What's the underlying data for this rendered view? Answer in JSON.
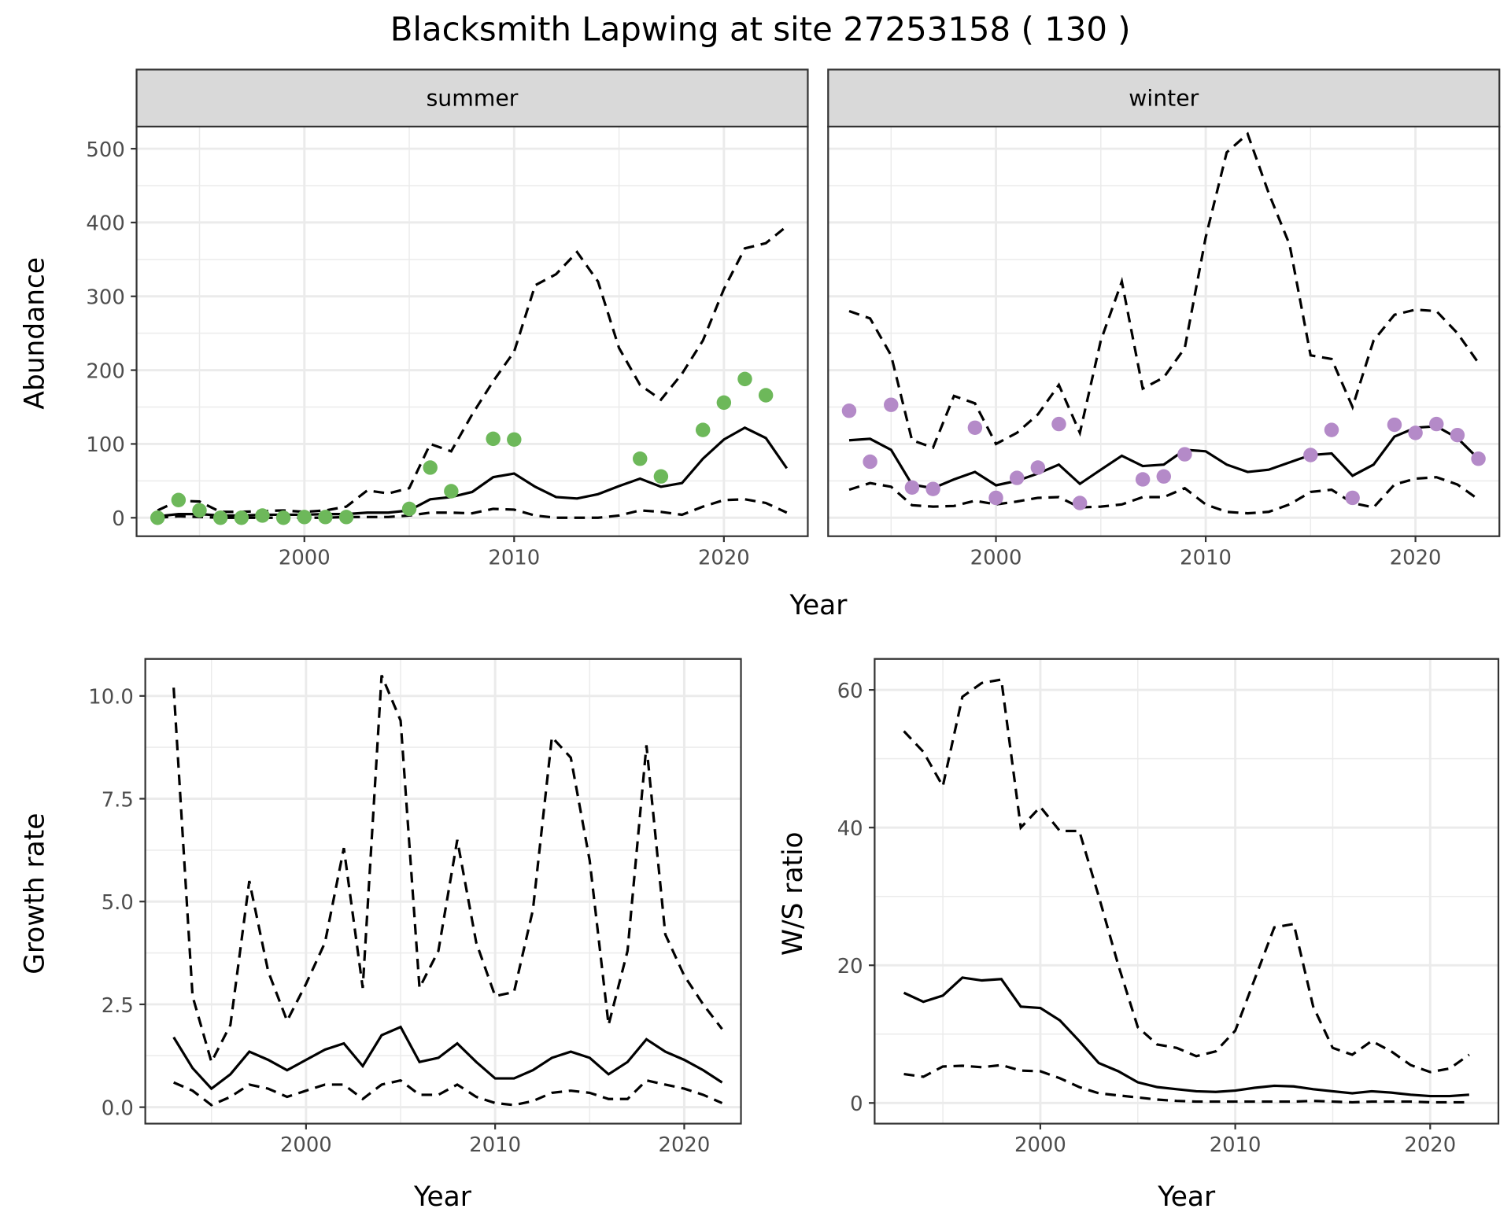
{
  "title": "Blacksmith Lapwing at site 27253158 ( 130 )",
  "colors": {
    "summer": "#6DB85A",
    "winter": "#B48AC8",
    "line": "#000000"
  },
  "chart_data": [
    {
      "type": "line",
      "panel": "summer",
      "strip_label": "summer",
      "xlabel": "Year",
      "ylabel": "Abundance",
      "xlim": [
        1992,
        2024
      ],
      "ylim": [
        -25,
        530
      ],
      "xticks": [
        2000,
        2010,
        2020
      ],
      "xtick_labels": [
        "2000",
        "2010",
        "2020"
      ],
      "yticks": [
        0,
        100,
        200,
        300,
        400,
        500
      ],
      "ytick_labels": [
        "0",
        "100",
        "200",
        "300",
        "400",
        "500"
      ],
      "x": [
        1993,
        1994,
        1995,
        1996,
        1997,
        1998,
        1999,
        2000,
        2001,
        2002,
        2003,
        2004,
        2005,
        2006,
        2007,
        2008,
        2009,
        2010,
        2011,
        2012,
        2013,
        2014,
        2015,
        2016,
        2017,
        2018,
        2019,
        2020,
        2021,
        2022,
        2023
      ],
      "series": [
        {
          "name": "mean",
          "style": "solid",
          "values": [
            2,
            5,
            5,
            3,
            3,
            4,
            4,
            4,
            5,
            5,
            7,
            7,
            10,
            25,
            28,
            35,
            55,
            60,
            42,
            28,
            26,
            32,
            43,
            53,
            42,
            47,
            80,
            106,
            122,
            108,
            67
          ]
        },
        {
          "name": "upper",
          "style": "dashed",
          "values": [
            10,
            23,
            22,
            8,
            8,
            9,
            10,
            8,
            10,
            15,
            37,
            33,
            40,
            100,
            90,
            140,
            185,
            225,
            315,
            330,
            360,
            320,
            230,
            180,
            160,
            195,
            240,
            310,
            365,
            372,
            395
          ]
        },
        {
          "name": "lower",
          "style": "dashed",
          "values": [
            0,
            2,
            1,
            0,
            0,
            0,
            0,
            0,
            0,
            1,
            1,
            1,
            3,
            7,
            7,
            6,
            12,
            11,
            3,
            0,
            0,
            0,
            3,
            10,
            8,
            4,
            15,
            24,
            25,
            20,
            7
          ]
        }
      ],
      "points": {
        "x": [
          1993,
          1994,
          1995,
          1996,
          1997,
          1998,
          1999,
          2000,
          2001,
          2002,
          2005,
          2006,
          2007,
          2009,
          2010,
          2016,
          2017,
          2019,
          2020,
          2021,
          2022
        ],
        "y": [
          0,
          24,
          10,
          0,
          0,
          3,
          0,
          1,
          1,
          1,
          12,
          68,
          36,
          107,
          106,
          80,
          56,
          119,
          156,
          188,
          166
        ]
      }
    },
    {
      "type": "line",
      "panel": "winter",
      "strip_label": "winter",
      "xlabel": "Year",
      "ylabel": "Abundance",
      "xlim": [
        1992,
        2024
      ],
      "ylim": [
        -25,
        530
      ],
      "xticks": [
        2000,
        2010,
        2020
      ],
      "xtick_labels": [
        "2000",
        "2010",
        "2020"
      ],
      "x": [
        1993,
        1994,
        1995,
        1996,
        1997,
        1998,
        1999,
        2000,
        2001,
        2002,
        2003,
        2004,
        2005,
        2006,
        2007,
        2008,
        2009,
        2010,
        2011,
        2012,
        2013,
        2014,
        2015,
        2016,
        2017,
        2018,
        2019,
        2020,
        2021,
        2022,
        2023
      ],
      "series": [
        {
          "name": "mean",
          "style": "solid",
          "values": [
            105,
            107,
            92,
            45,
            40,
            52,
            62,
            44,
            50,
            60,
            72,
            46,
            65,
            84,
            70,
            72,
            92,
            90,
            72,
            62,
            65,
            75,
            85,
            87,
            57,
            72,
            110,
            122,
            124,
            108,
            80
          ]
        },
        {
          "name": "upper",
          "style": "dashed",
          "values": [
            280,
            270,
            220,
            105,
            95,
            165,
            155,
            100,
            115,
            140,
            180,
            115,
            240,
            320,
            175,
            190,
            230,
            380,
            495,
            520,
            440,
            370,
            220,
            215,
            150,
            240,
            275,
            282,
            280,
            250,
            210
          ]
        },
        {
          "name": "lower",
          "style": "dashed",
          "values": [
            38,
            47,
            42,
            17,
            15,
            16,
            23,
            18,
            22,
            27,
            28,
            14,
            15,
            18,
            28,
            28,
            40,
            18,
            8,
            6,
            8,
            18,
            35,
            38,
            20,
            14,
            45,
            53,
            55,
            45,
            25
          ]
        }
      ],
      "points": {
        "x": [
          1993,
          1994,
          1995,
          1996,
          1997,
          1999,
          2000,
          2001,
          2002,
          2003,
          2004,
          2007,
          2008,
          2009,
          2015,
          2016,
          2017,
          2019,
          2020,
          2021,
          2022,
          2023
        ],
        "y": [
          145,
          76,
          153,
          41,
          39,
          122,
          27,
          54,
          68,
          127,
          20,
          52,
          56,
          86,
          85,
          119,
          27,
          126,
          115,
          127,
          112,
          80
        ]
      }
    },
    {
      "type": "line",
      "panel": "growth",
      "xlabel": "Year",
      "ylabel": "Growth rate",
      "xlim": [
        1991.5,
        2023
      ],
      "ylim": [
        -0.4,
        10.9
      ],
      "xticks": [
        2000,
        2010,
        2020
      ],
      "xtick_labels": [
        "2000",
        "2010",
        "2020"
      ],
      "yticks": [
        0,
        2.5,
        5,
        7.5,
        10
      ],
      "ytick_labels": [
        "0.0",
        "2.5",
        "5.0",
        "7.5",
        "10.0"
      ],
      "x": [
        1993,
        1994,
        1995,
        1996,
        1997,
        1998,
        1999,
        2000,
        2001,
        2002,
        2003,
        2004,
        2005,
        2006,
        2007,
        2008,
        2009,
        2010,
        2011,
        2012,
        2013,
        2014,
        2015,
        2016,
        2017,
        2018,
        2019,
        2020,
        2021,
        2022
      ],
      "series": [
        {
          "name": "mean",
          "style": "solid",
          "values": [
            1.7,
            0.95,
            0.45,
            0.8,
            1.35,
            1.15,
            0.9,
            1.15,
            1.4,
            1.55,
            1.0,
            1.75,
            1.95,
            1.1,
            1.2,
            1.55,
            1.1,
            0.7,
            0.7,
            0.9,
            1.2,
            1.35,
            1.2,
            0.8,
            1.1,
            1.65,
            1.35,
            1.15,
            0.9,
            0.6
          ]
        },
        {
          "name": "upper",
          "style": "dashed",
          "values": [
            10.2,
            2.7,
            1.1,
            2.0,
            5.5,
            3.3,
            2.1,
            3.0,
            4.0,
            6.3,
            2.9,
            10.5,
            9.4,
            2.9,
            3.8,
            6.5,
            4.0,
            2.7,
            2.8,
            4.8,
            9.0,
            8.5,
            6.0,
            2.0,
            3.8,
            8.8,
            4.2,
            3.2,
            2.5,
            1.9
          ]
        },
        {
          "name": "lower",
          "style": "dashed",
          "values": [
            0.6,
            0.4,
            0.05,
            0.25,
            0.55,
            0.45,
            0.25,
            0.4,
            0.55,
            0.55,
            0.2,
            0.55,
            0.65,
            0.3,
            0.3,
            0.55,
            0.25,
            0.1,
            0.05,
            0.15,
            0.35,
            0.4,
            0.35,
            0.2,
            0.2,
            0.65,
            0.55,
            0.45,
            0.3,
            0.1
          ]
        }
      ]
    },
    {
      "type": "line",
      "panel": "ratio",
      "xlabel": "Year",
      "ylabel": "W/S ratio",
      "xlim": [
        1991.5,
        2023.5
      ],
      "ylim": [
        -3,
        64.5
      ],
      "xticks": [
        2000,
        2010,
        2020
      ],
      "xtick_labels": [
        "2000",
        "2010",
        "2020"
      ],
      "yticks": [
        0,
        20,
        40,
        60
      ],
      "ytick_labels": [
        "0",
        "20",
        "40",
        "60"
      ],
      "x": [
        1993,
        1994,
        1995,
        1996,
        1997,
        1998,
        1999,
        2000,
        2001,
        2002,
        2003,
        2004,
        2005,
        2006,
        2007,
        2008,
        2009,
        2010,
        2011,
        2012,
        2013,
        2014,
        2015,
        2016,
        2017,
        2018,
        2019,
        2020,
        2021,
        2022
      ],
      "series": [
        {
          "name": "mean",
          "style": "solid",
          "values": [
            16,
            14.7,
            15.6,
            18.2,
            17.8,
            18,
            14,
            13.8,
            12,
            9,
            5.8,
            4.6,
            3,
            2.3,
            2,
            1.7,
            1.6,
            1.8,
            2.2,
            2.5,
            2.4,
            2,
            1.7,
            1.4,
            1.7,
            1.5,
            1.2,
            1.0,
            1.0,
            1.2
          ]
        },
        {
          "name": "upper",
          "style": "dashed",
          "values": [
            54,
            51,
            46,
            59,
            61,
            61.5,
            40,
            43,
            39.5,
            39.5,
            30,
            20,
            11,
            8.5,
            8,
            6.8,
            7.5,
            10.5,
            18,
            25.5,
            26,
            14,
            8,
            7,
            9,
            7.5,
            5.5,
            4.5,
            5,
            7
          ]
        },
        {
          "name": "lower",
          "style": "dashed",
          "values": [
            4.2,
            3.8,
            5.3,
            5.4,
            5.2,
            5.5,
            4.7,
            4.6,
            3.6,
            2.3,
            1.4,
            1.1,
            0.8,
            0.5,
            0.3,
            0.2,
            0.2,
            0.2,
            0.2,
            0.2,
            0.2,
            0.3,
            0.2,
            0.1,
            0.2,
            0.2,
            0.2,
            0.1,
            0.1,
            0.1
          ]
        }
      ]
    }
  ]
}
